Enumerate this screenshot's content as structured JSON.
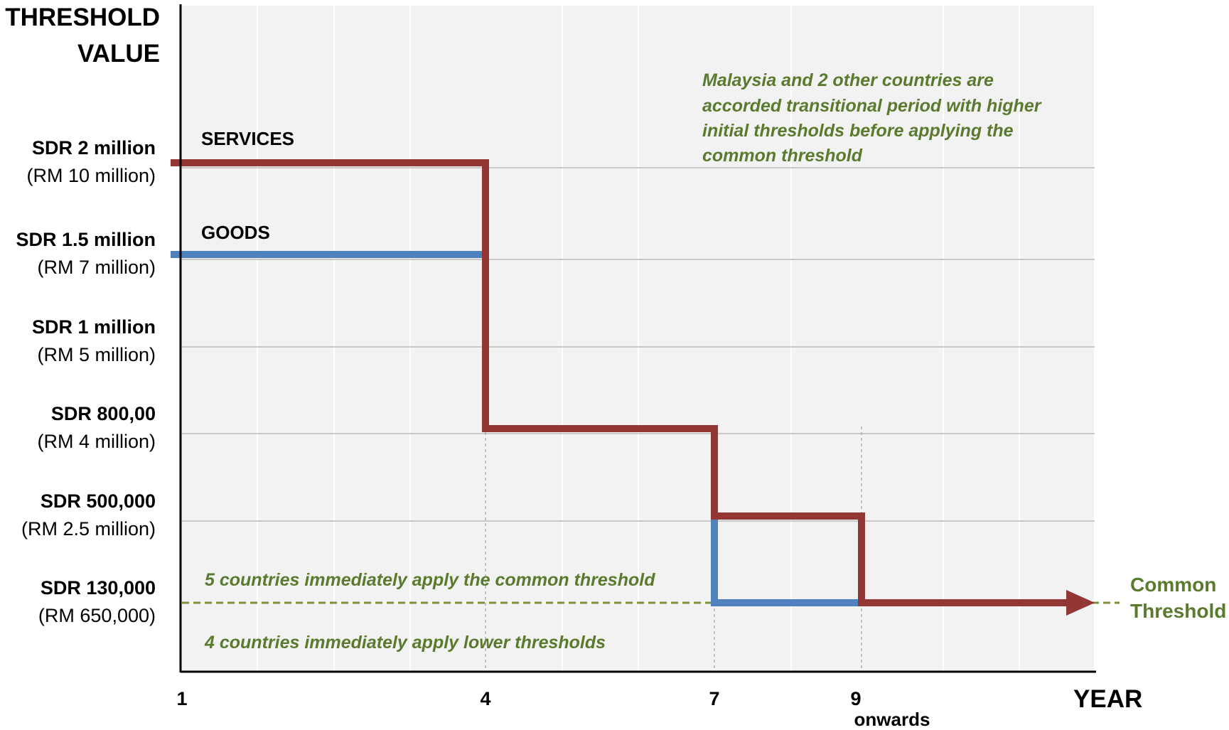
{
  "chart_data": {
    "type": "line",
    "title": "",
    "ylabel_lines": [
      "THRESHOLD",
      "VALUE"
    ],
    "xlabel": "YEAR",
    "x_ticks": [
      {
        "x": 1,
        "label": "1",
        "sub": ""
      },
      {
        "x": 4,
        "label": "4",
        "sub": ""
      },
      {
        "x": 7,
        "label": "7",
        "sub": ""
      },
      {
        "x": 9,
        "label": "9",
        "sub": "onwards"
      }
    ],
    "y_ticks": [
      {
        "level": "SDR 2 million",
        "primary": "SDR 2 million",
        "secondary": "(RM 10 million)"
      },
      {
        "level": "SDR 1.5 million",
        "primary": "SDR 1.5 million",
        "secondary": "(RM 7 million)"
      },
      {
        "level": "SDR 1 million",
        "primary": "SDR 1 million",
        "secondary": "(RM 5 million)"
      },
      {
        "level": "SDR 800,00",
        "primary": "SDR 800,00",
        "secondary": "(RM 4 million)"
      },
      {
        "level": "SDR 500,000",
        "primary": "SDR 500,000",
        "secondary": "(RM 2.5 million)"
      },
      {
        "level": "SDR 130,000",
        "primary": "SDR 130,000",
        "secondary": "(RM 650,000)"
      }
    ],
    "grid": true,
    "series": [
      {
        "name": "SERVICES",
        "color": "#943634",
        "points": [
          {
            "x": 1,
            "y": "SDR 2 million"
          },
          {
            "x": 4,
            "y": "SDR 2 million"
          },
          {
            "x": 4,
            "y": "SDR 800,00"
          },
          {
            "x": 7,
            "y": "SDR 800,00"
          },
          {
            "x": 7,
            "y": "SDR 500,000"
          },
          {
            "x": 9,
            "y": "SDR 500,000"
          },
          {
            "x": 9,
            "y": "SDR 130,000"
          }
        ],
        "continues_with_arrow": true
      },
      {
        "name": "GOODS",
        "color": "#4f81bd",
        "points": [
          {
            "x": 1,
            "y": "SDR 1.5 million"
          },
          {
            "x": 4,
            "y": "SDR 1.5 million"
          },
          {
            "x": 4,
            "y": "SDR 800,00"
          },
          {
            "x": 7,
            "y": "SDR 800,00"
          },
          {
            "x": 7,
            "y": "SDR 130,000"
          },
          {
            "x": 9,
            "y": "SDR 130,000"
          }
        ],
        "continues_with_arrow": true
      }
    ],
    "reference_line": {
      "y": "SDR 130,000",
      "label_lines": [
        "Common",
        "Threshold"
      ],
      "color": "#77933c"
    },
    "annotations": [
      {
        "id": "malaysia",
        "lines": [
          "Malaysia and 2 other countries are",
          "accorded transitional period with higher",
          "initial thresholds before applying the",
          "common threshold"
        ]
      },
      {
        "id": "five",
        "lines": [
          "5 countries immediately apply the common threshold"
        ]
      },
      {
        "id": "four",
        "lines": [
          "4 countries immediately apply lower thresholds"
        ]
      }
    ],
    "colors": {
      "services": "#943634",
      "goods": "#4f81bd",
      "common": "#77933c",
      "annotation": "#5a7a2e",
      "plot_bg": "#f2f2f2"
    }
  }
}
